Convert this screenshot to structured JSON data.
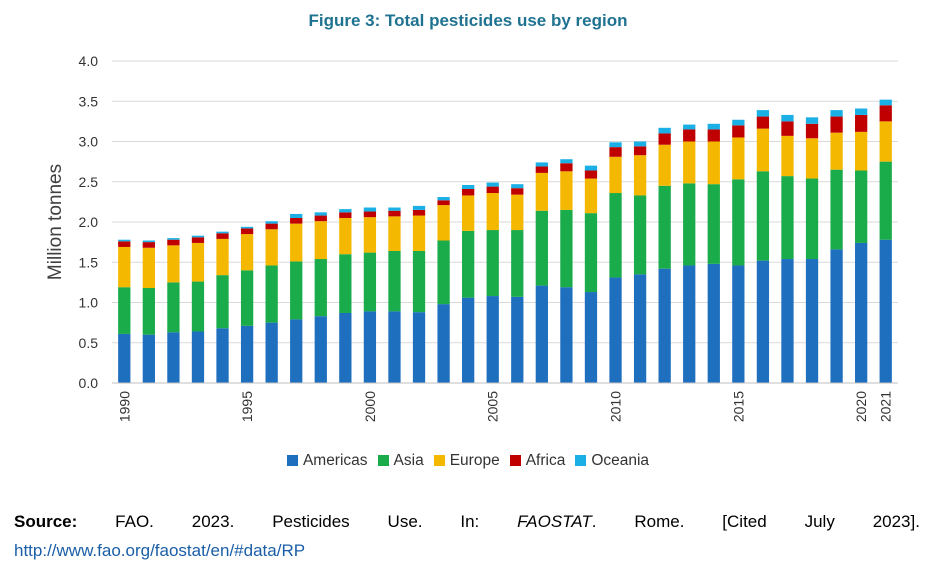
{
  "chart_data": {
    "type": "bar",
    "stacked": true,
    "title": "Figure 3: Total pesticides use by region",
    "ylabel": "Million tonnes",
    "xlabel": "",
    "ylim": [
      0,
      4.0
    ],
    "yticks": [
      "0.0",
      "0.5",
      "1.0",
      "1.5",
      "2.0",
      "2.5",
      "3.0",
      "3.5",
      "4.0"
    ],
    "x_tick_labels": [
      "1990",
      "1995",
      "2000",
      "2005",
      "2010",
      "2015",
      "2020",
      "2021"
    ],
    "x_tick_years": [
      1990,
      1995,
      2000,
      2005,
      2010,
      2015,
      2020,
      2021
    ],
    "grid": true,
    "legend_position": "bottom",
    "categories": [
      1990,
      1991,
      1992,
      1993,
      1994,
      1995,
      1996,
      1997,
      1998,
      1999,
      2000,
      2001,
      2002,
      2003,
      2004,
      2005,
      2006,
      2007,
      2008,
      2009,
      2010,
      2011,
      2012,
      2013,
      2014,
      2015,
      2016,
      2017,
      2018,
      2019,
      2020,
      2021
    ],
    "series": [
      {
        "name": "Americas",
        "color": "#1f6fbf",
        "values": [
          0.61,
          0.6,
          0.63,
          0.64,
          0.68,
          0.71,
          0.75,
          0.79,
          0.83,
          0.87,
          0.89,
          0.89,
          0.88,
          0.98,
          1.06,
          1.08,
          1.07,
          1.21,
          1.19,
          1.13,
          1.31,
          1.35,
          1.42,
          1.46,
          1.48,
          1.46,
          1.52,
          1.54,
          1.54,
          1.66,
          1.74,
          1.78
        ]
      },
      {
        "name": "Asia",
        "color": "#1aab4b",
        "values": [
          0.58,
          0.58,
          0.62,
          0.62,
          0.66,
          0.69,
          0.71,
          0.72,
          0.71,
          0.73,
          0.73,
          0.75,
          0.76,
          0.79,
          0.83,
          0.82,
          0.83,
          0.93,
          0.96,
          0.98,
          1.05,
          0.98,
          1.03,
          1.02,
          0.99,
          1.07,
          1.11,
          1.03,
          1.0,
          0.99,
          0.9,
          0.97
        ]
      },
      {
        "name": "Europe",
        "color": "#f5b800",
        "values": [
          0.5,
          0.5,
          0.46,
          0.48,
          0.45,
          0.45,
          0.45,
          0.47,
          0.47,
          0.45,
          0.44,
          0.43,
          0.44,
          0.44,
          0.44,
          0.46,
          0.44,
          0.47,
          0.48,
          0.43,
          0.45,
          0.5,
          0.51,
          0.52,
          0.53,
          0.52,
          0.53,
          0.5,
          0.5,
          0.46,
          0.48,
          0.5
        ]
      },
      {
        "name": "Africa",
        "color": "#c00000",
        "values": [
          0.07,
          0.07,
          0.07,
          0.07,
          0.07,
          0.07,
          0.07,
          0.07,
          0.07,
          0.07,
          0.07,
          0.07,
          0.07,
          0.06,
          0.08,
          0.08,
          0.08,
          0.08,
          0.1,
          0.1,
          0.12,
          0.11,
          0.14,
          0.15,
          0.15,
          0.15,
          0.15,
          0.18,
          0.18,
          0.2,
          0.21,
          0.2
        ]
      },
      {
        "name": "Oceania",
        "color": "#1ab0e6",
        "values": [
          0.02,
          0.02,
          0.02,
          0.02,
          0.02,
          0.02,
          0.03,
          0.05,
          0.04,
          0.04,
          0.05,
          0.04,
          0.05,
          0.04,
          0.05,
          0.05,
          0.05,
          0.05,
          0.05,
          0.06,
          0.06,
          0.06,
          0.07,
          0.06,
          0.07,
          0.07,
          0.08,
          0.08,
          0.08,
          0.08,
          0.08,
          0.07
        ]
      }
    ]
  },
  "source": {
    "label": "Source:",
    "text_1": "FAO. 2023. Pesticides Use. In:",
    "italic": "FAOSTAT",
    "text_2": ". Rome. [Cited July 2023].",
    "url": "http://www.fao.org/faostat/en/#data/RP"
  }
}
